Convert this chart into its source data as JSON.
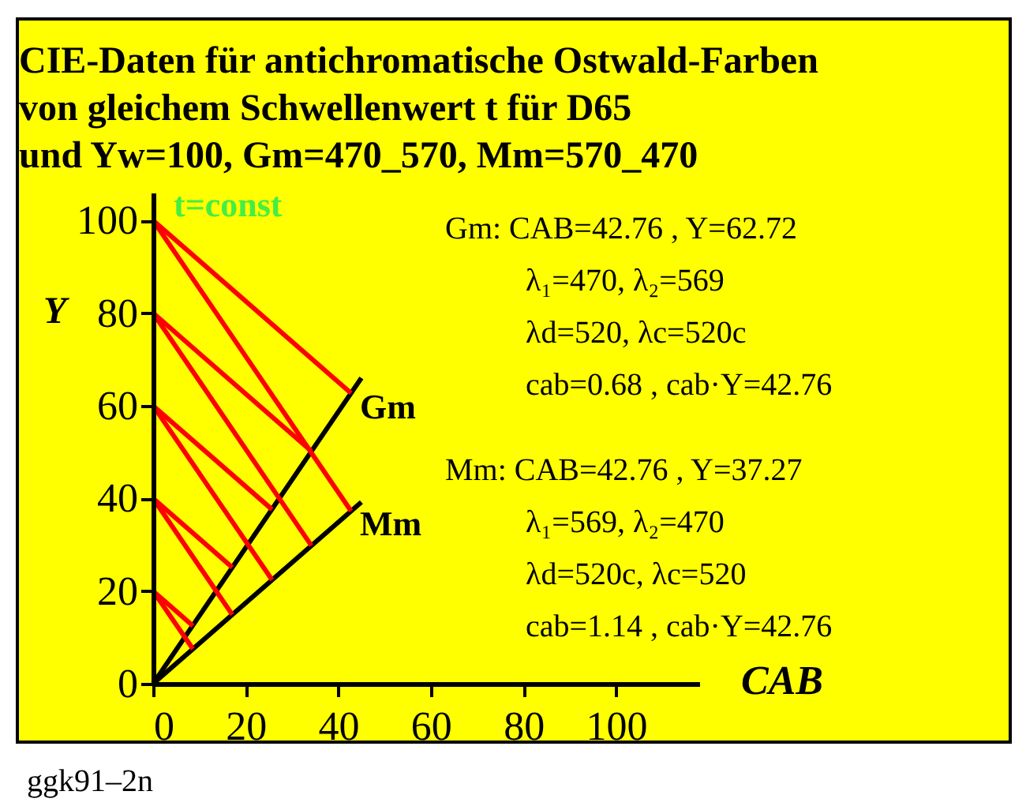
{
  "chart_data": {
    "type": "line",
    "title": "CIE-Daten für antichromatische Ostwald-Farben\nvon gleichem Schwellenwert t für D65\nund Yw=100, Gm=470_570, Mm=570_470",
    "xlabel": "CAB",
    "ylabel": "Y",
    "xlim": [
      0,
      118
    ],
    "ylim": [
      0,
      106
    ],
    "xticks": [
      0,
      20,
      40,
      60,
      80,
      100
    ],
    "yticks": [
      0,
      20,
      40,
      60,
      80,
      100
    ],
    "grid": false,
    "marker": "none",
    "line_style": "solid",
    "series": [
      {
        "color": "#000000",
        "x": [
          0,
          45
        ],
        "values": [
          0,
          66.0
        ]
      },
      {
        "color": "#000000",
        "x": [
          0,
          45
        ],
        "values": [
          0,
          39.2
        ]
      },
      {
        "color": "#ff0000",
        "x": [
          0,
          42.76
        ],
        "values": [
          100,
          62.72
        ]
      },
      {
        "color": "#ff0000",
        "x": [
          0,
          42.76
        ],
        "values": [
          100,
          37.27
        ]
      },
      {
        "color": "#ff0000",
        "x": [
          0,
          34.2
        ],
        "values": [
          80,
          50.2
        ]
      },
      {
        "color": "#ff0000",
        "x": [
          0,
          34.2
        ],
        "values": [
          80,
          29.8
        ]
      },
      {
        "color": "#ff0000",
        "x": [
          0,
          25.7
        ],
        "values": [
          60,
          37.6
        ]
      },
      {
        "color": "#ff0000",
        "x": [
          0,
          25.7
        ],
        "values": [
          60,
          22.4
        ]
      },
      {
        "color": "#ff0000",
        "x": [
          0,
          17.1
        ],
        "values": [
          40,
          25.1
        ]
      },
      {
        "color": "#ff0000",
        "x": [
          0,
          17.1
        ],
        "values": [
          40,
          14.9
        ]
      },
      {
        "color": "#ff0000",
        "x": [
          0,
          8.6
        ],
        "values": [
          20,
          12.5
        ]
      },
      {
        "color": "#ff0000",
        "x": [
          0,
          8.6
        ],
        "values": [
          20,
          7.5
        ]
      }
    ],
    "annotations": [
      "t=const",
      "Gm",
      "Mm",
      "Gm: CAB=42.76 , Y=62.72",
      "λ₁=470, λ₂=569",
      "λd=520, λc=520c",
      "cab=0.68 , cab·Y=42.76",
      "Mm: CAB=42.76 , Y=37.27",
      "λ₁=569, λ₂=470",
      "λd=520c, λc=520",
      "cab=1.14 , cab·Y=42.76",
      "ggk91–2n"
    ]
  }
}
